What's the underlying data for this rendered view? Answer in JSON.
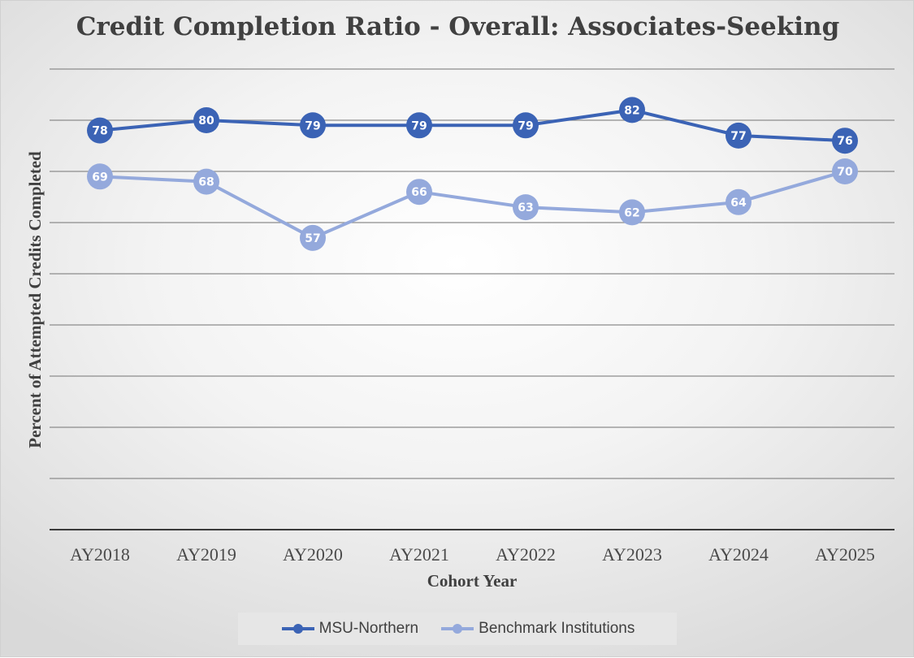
{
  "chart_data": {
    "type": "line",
    "title": "Credit Completion Ratio - Overall: Associates-Seeking",
    "xlabel": "Cohort Year",
    "ylabel": "Percent of  Attempted Credits Completed",
    "categories": [
      "AY2018",
      "AY2019",
      "AY2020",
      "AY2021",
      "AY2022",
      "AY2023",
      "AY2024",
      "AY2025"
    ],
    "series": [
      {
        "name": "MSU-Northern",
        "color": "#3b63b5",
        "values": [
          78,
          80,
          79,
          79,
          79,
          82,
          77,
          76
        ]
      },
      {
        "name": "Benchmark Institutions",
        "color": "#94a9dc",
        "values": [
          69,
          68,
          57,
          66,
          63,
          62,
          64,
          70
        ]
      }
    ],
    "ylim": [
      0,
      90
    ],
    "grid": true,
    "y_tick_labels_shown": false,
    "data_labels": true,
    "legend_position": "bottom"
  }
}
